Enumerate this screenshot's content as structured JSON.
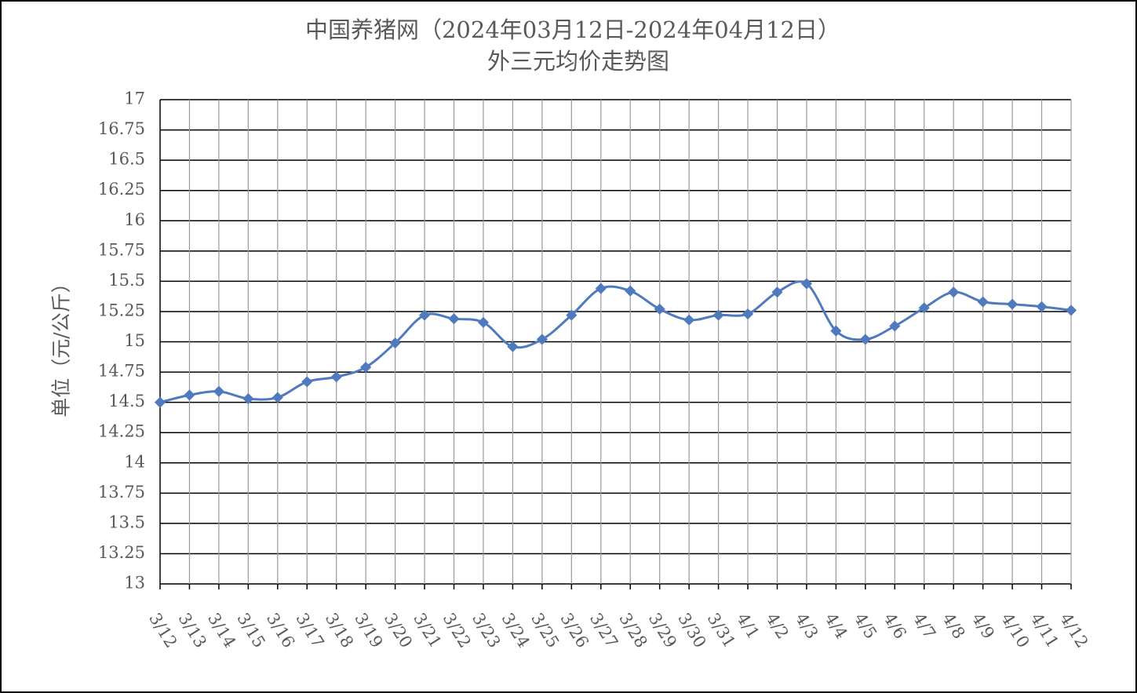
{
  "chart_data": {
    "type": "line",
    "title": "中国养猪网（2024年03月12日-2024年04月12日）",
    "subtitle": "外三元均价走势图",
    "y_label": "单位（元/公斤）",
    "categories": [
      "3/12",
      "3/13",
      "3/14",
      "3/15",
      "3/16",
      "3/17",
      "3/18",
      "3/19",
      "3/20",
      "3/21",
      "3/22",
      "3/23",
      "3/24",
      "3/25",
      "3/26",
      "3/27",
      "3/28",
      "3/29",
      "3/30",
      "3/31",
      "4/1",
      "4/2",
      "4/3",
      "4/4",
      "4/5",
      "4/6",
      "4/7",
      "4/8",
      "4/9",
      "4/10",
      "4/11",
      "4/12"
    ],
    "series": [
      {
        "name": "外三元均价",
        "color": "#4f7bbe",
        "values": [
          14.5,
          14.56,
          14.59,
          14.53,
          14.54,
          14.67,
          14.71,
          14.79,
          14.99,
          15.22,
          15.19,
          15.16,
          14.96,
          15.02,
          15.22,
          15.44,
          15.42,
          15.27,
          15.18,
          15.22,
          15.23,
          15.41,
          15.48,
          15.09,
          15.02,
          15.13,
          15.28,
          15.41,
          15.33,
          15.31,
          15.29,
          15.26
        ]
      }
    ],
    "ylim": [
      13,
      17
    ],
    "yticks": [
      13,
      13.25,
      13.5,
      13.75,
      14,
      14.25,
      14.5,
      14.75,
      15,
      15.25,
      15.5,
      15.75,
      16,
      16.25,
      16.5,
      16.75,
      17
    ],
    "grid": true,
    "smooth": true
  }
}
